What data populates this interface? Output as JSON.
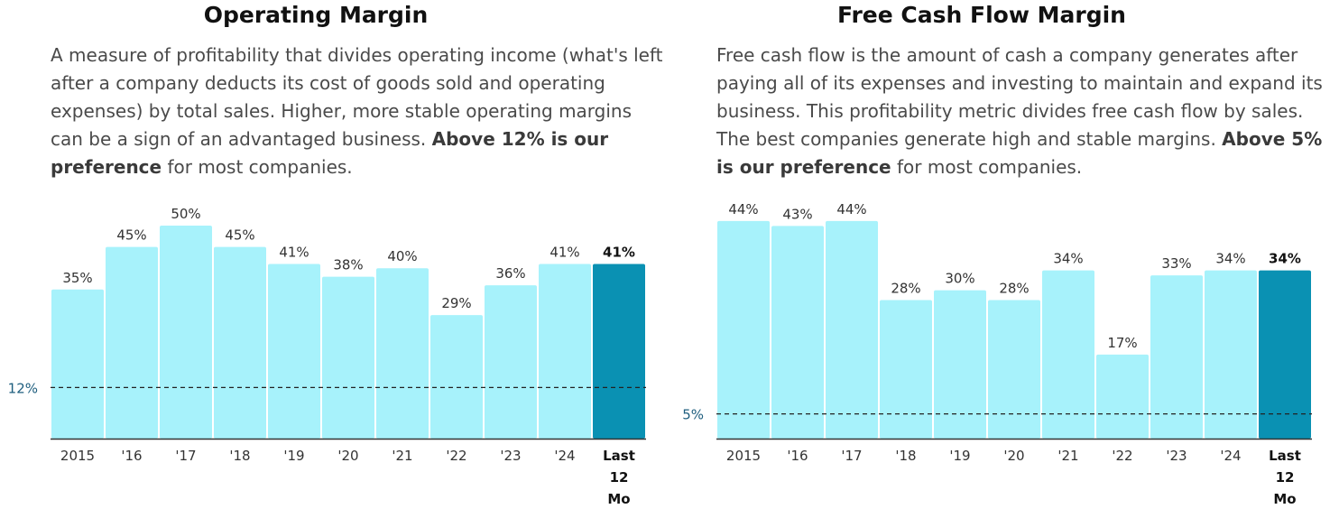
{
  "panels": [
    {
      "title": "Operating Margin",
      "description": {
        "text": "A measure of profitability that divides operating income (what's left after a company deducts its cost of goods sold and operating expenses) by total sales. Higher, more stable operating margins can be a sign of an advantaged business.",
        "emphasis": "Above 12% is our preference",
        "tail": "for most companies."
      }
    },
    {
      "title": "Free Cash Flow Margin",
      "description": {
        "text": "Free cash flow is the amount of cash a company generates after paying all of its expenses and investing to maintain and expand its business. This profitability metric divides free cash flow by sales. The best companies generate high and stable margins.",
        "emphasis": "Above 5% is our preference",
        "tail": "for most companies."
      }
    }
  ],
  "chart_data": [
    {
      "type": "bar",
      "title": "Operating Margin",
      "categories": [
        "2015",
        "'16",
        "'17",
        "'18",
        "'19",
        "'20",
        "'21",
        "'22",
        "'23",
        "'24",
        "Last 12 Mo"
      ],
      "values": [
        35,
        45,
        50,
        45,
        41,
        38,
        40,
        29,
        36,
        41,
        41
      ],
      "value_labels": [
        "35%",
        "45%",
        "50%",
        "45%",
        "41%",
        "38%",
        "40%",
        "29%",
        "36%",
        "41%",
        "41%"
      ],
      "reference_line": {
        "value": 12,
        "label": "12%"
      },
      "highlight_index": 10,
      "colors": {
        "bar": "#a7f2fb",
        "highlight": "#0a91b3",
        "axis": "#333333"
      }
    },
    {
      "type": "bar",
      "title": "Free Cash Flow Margin",
      "categories": [
        "2015",
        "'16",
        "'17",
        "'18",
        "'19",
        "'20",
        "'21",
        "'22",
        "'23",
        "'24",
        "Last 12 Mo"
      ],
      "values": [
        44,
        43,
        44,
        28,
        30,
        28,
        34,
        17,
        33,
        34,
        34
      ],
      "value_labels": [
        "44%",
        "43%",
        "44%",
        "28%",
        "30%",
        "28%",
        "34%",
        "17%",
        "33%",
        "34%",
        "34%"
      ],
      "reference_line": {
        "value": 5,
        "label": "5%"
      },
      "highlight_index": 10,
      "colors": {
        "bar": "#a7f2fb",
        "highlight": "#0a91b3",
        "axis": "#333333"
      }
    }
  ]
}
